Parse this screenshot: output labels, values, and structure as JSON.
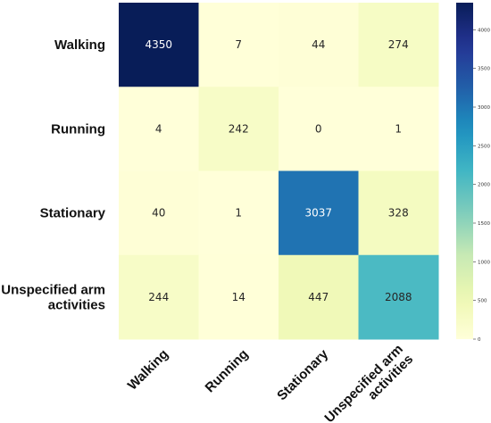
{
  "chart_data": {
    "type": "heatmap",
    "rows": [
      "Walking",
      "Running",
      "Stationary",
      "Unspecified arm activities"
    ],
    "columns": [
      "Walking",
      "Running",
      "Stationary",
      "Unspecified arm activities"
    ],
    "values": [
      [
        4350,
        7,
        44,
        274
      ],
      [
        4,
        242,
        0,
        1
      ],
      [
        40,
        1,
        3037,
        328
      ],
      [
        244,
        14,
        447,
        2088
      ]
    ],
    "title": "",
    "xlabel": "",
    "ylabel": "",
    "colormap": "YlGnBu",
    "colorbar": {
      "range": [
        0,
        4350
      ],
      "ticks": [
        0,
        500,
        1000,
        1500,
        2000,
        2500,
        3000,
        3500,
        4000
      ]
    }
  }
}
